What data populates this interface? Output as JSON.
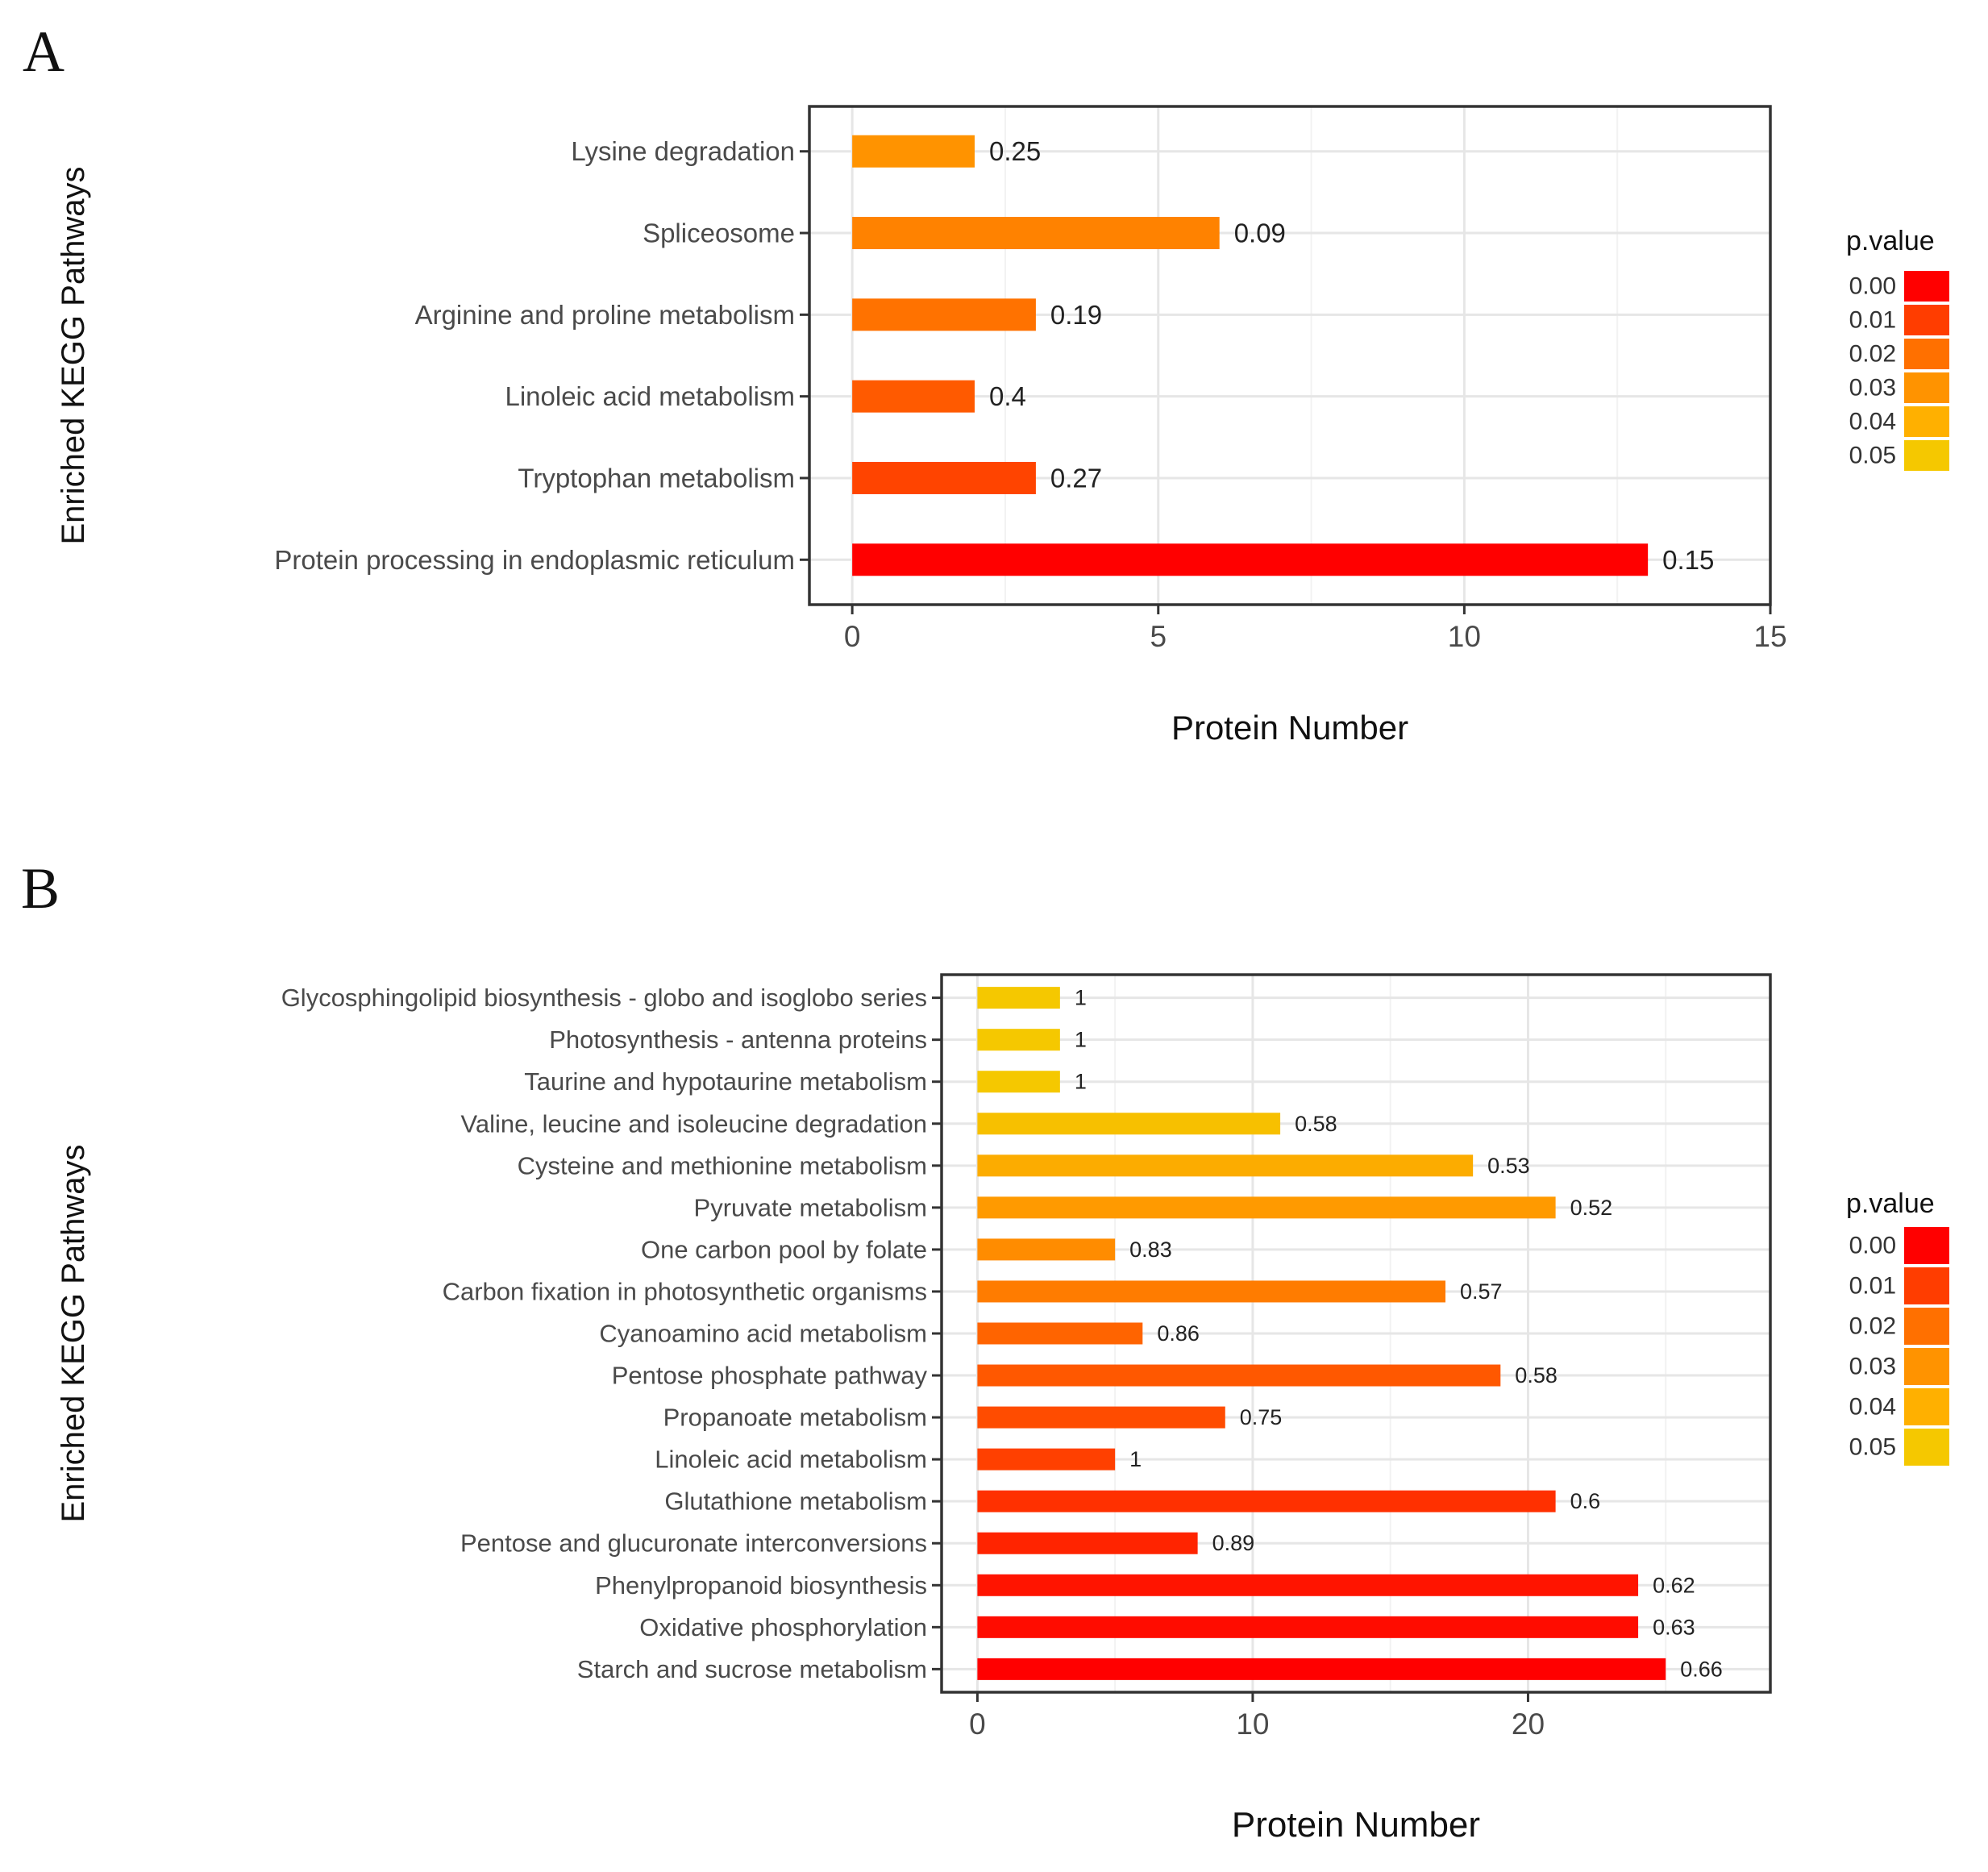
{
  "panels": {
    "a": {
      "label": "A"
    },
    "b": {
      "label": "B"
    }
  },
  "chart_data": [
    {
      "type": "bar",
      "orientation": "horizontal",
      "panel": "A",
      "xlabel": "Protein Number",
      "ylabel": "Enriched KEGG Pathways",
      "xlim": [
        -0.7,
        15
      ],
      "xticks": [
        0,
        5,
        10,
        15
      ],
      "grid": true,
      "legend": {
        "title": "p.value",
        "labels": [
          "0.00",
          "0.01",
          "0.02",
          "0.03",
          "0.04",
          "0.05"
        ],
        "colors": [
          "#ff0000",
          "#ff3d00",
          "#ff7000",
          "#ff9300",
          "#ffb000",
          "#f5c800"
        ],
        "placement": "right"
      },
      "categories": [
        "Lysine degradation",
        "Spliceosome",
        "Arginine and proline metabolism",
        "Linoleic acid metabolism",
        "Tryptophan metabolism",
        "Protein processing in endoplasmic reticulum"
      ],
      "values": [
        2,
        6,
        3,
        2,
        3,
        13
      ],
      "labels": [
        "0.25",
        "0.09",
        "0.19",
        "0.4",
        "0.27",
        "0.15"
      ],
      "colors": [
        "#ff9300",
        "#ff8200",
        "#ff7200",
        "#ff5a00",
        "#ff4400",
        "#ff0000"
      ]
    },
    {
      "type": "bar",
      "orientation": "horizontal",
      "panel": "B",
      "xlabel": "Protein Number",
      "ylabel": "Enriched KEGG Pathways",
      "xlim": [
        -1.3,
        28.8
      ],
      "xticks": [
        0,
        10,
        20
      ],
      "grid": true,
      "legend": {
        "title": "p.value",
        "labels": [
          "0.00",
          "0.01",
          "0.02",
          "0.03",
          "0.04",
          "0.05"
        ],
        "colors": [
          "#ff0000",
          "#ff3d00",
          "#ff7000",
          "#ff9300",
          "#ffb000",
          "#f5c800"
        ],
        "placement": "right"
      },
      "categories": [
        "Glycosphingolipid biosynthesis - globo and isoglobo series",
        "Photosynthesis - antenna proteins",
        "Taurine and hypotaurine metabolism",
        "Valine, leucine and isoleucine degradation",
        "Cysteine and methionine metabolism",
        "Pyruvate metabolism",
        "One carbon pool by folate",
        "Carbon fixation in photosynthetic organisms",
        "Cyanoamino acid metabolism",
        "Pentose phosphate pathway",
        "Propanoate metabolism",
        "Linoleic acid metabolism",
        "Glutathione metabolism",
        "Pentose and glucuronate interconversions",
        "Phenylpropanoid biosynthesis",
        "Oxidative phosphorylation",
        "Starch and sucrose metabolism"
      ],
      "values": [
        3,
        3,
        3,
        11,
        18,
        21,
        5,
        17,
        6,
        19,
        9,
        5,
        21,
        8,
        24,
        24,
        25
      ],
      "labels": [
        "1",
        "1",
        "1",
        "0.58",
        "0.53",
        "0.52",
        "0.83",
        "0.57",
        "0.86",
        "0.58",
        "0.75",
        "1",
        "0.6",
        "0.89",
        "0.62",
        "0.63",
        "0.66"
      ],
      "colors": [
        "#f5c800",
        "#f5c800",
        "#f5c800",
        "#f7c000",
        "#fcac00",
        "#ff9a00",
        "#ff8c00",
        "#ff7c00",
        "#ff6400",
        "#ff5800",
        "#ff4c00",
        "#ff4000",
        "#ff3000",
        "#ff2400",
        "#ff1400",
        "#ff0c00",
        "#ff0000"
      ]
    }
  ]
}
